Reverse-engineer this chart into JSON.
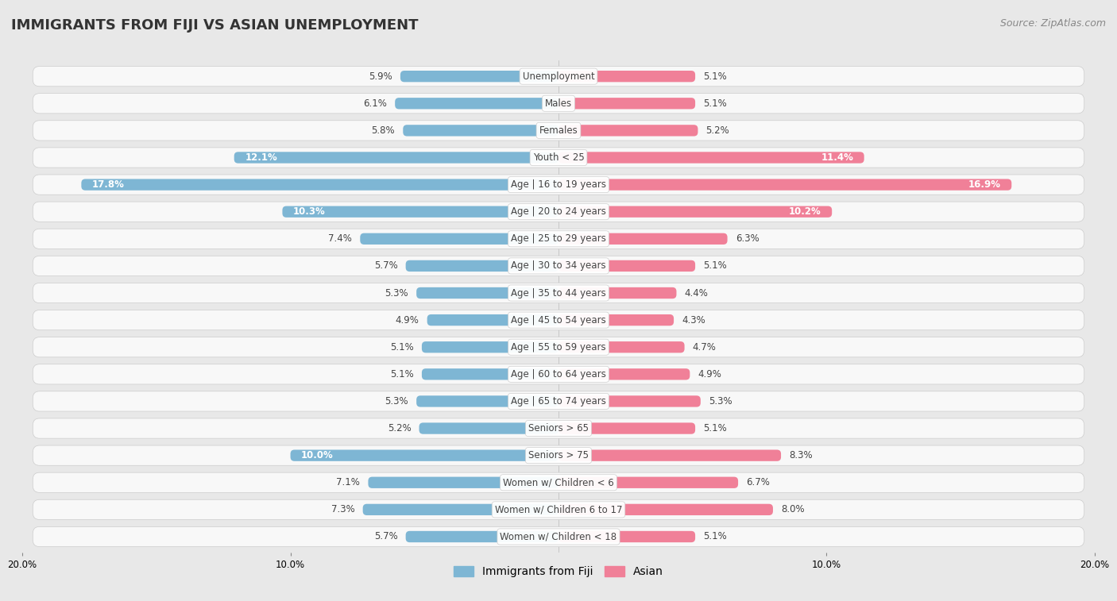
{
  "title": "IMMIGRANTS FROM FIJI VS ASIAN UNEMPLOYMENT",
  "source": "Source: ZipAtlas.com",
  "categories": [
    "Unemployment",
    "Males",
    "Females",
    "Youth < 25",
    "Age | 16 to 19 years",
    "Age | 20 to 24 years",
    "Age | 25 to 29 years",
    "Age | 30 to 34 years",
    "Age | 35 to 44 years",
    "Age | 45 to 54 years",
    "Age | 55 to 59 years",
    "Age | 60 to 64 years",
    "Age | 65 to 74 years",
    "Seniors > 65",
    "Seniors > 75",
    "Women w/ Children < 6",
    "Women w/ Children 6 to 17",
    "Women w/ Children < 18"
  ],
  "fiji_values": [
    5.9,
    6.1,
    5.8,
    12.1,
    17.8,
    10.3,
    7.4,
    5.7,
    5.3,
    4.9,
    5.1,
    5.1,
    5.3,
    5.2,
    10.0,
    7.1,
    7.3,
    5.7
  ],
  "asian_values": [
    5.1,
    5.1,
    5.2,
    11.4,
    16.9,
    10.2,
    6.3,
    5.1,
    4.4,
    4.3,
    4.7,
    4.9,
    5.3,
    5.1,
    8.3,
    6.7,
    8.0,
    5.1
  ],
  "fiji_color": "#7eb6d4",
  "asian_color": "#f08098",
  "fiji_label": "Immigrants from Fiji",
  "asian_label": "Asian",
  "xlim": 20.0,
  "bg_color": "#e8e8e8",
  "row_bg_color": "#f8f8f8",
  "title_fontsize": 13,
  "source_fontsize": 9,
  "label_fontsize": 8.5,
  "value_fontsize": 8.5,
  "legend_fontsize": 10,
  "inside_threshold": 9.0
}
